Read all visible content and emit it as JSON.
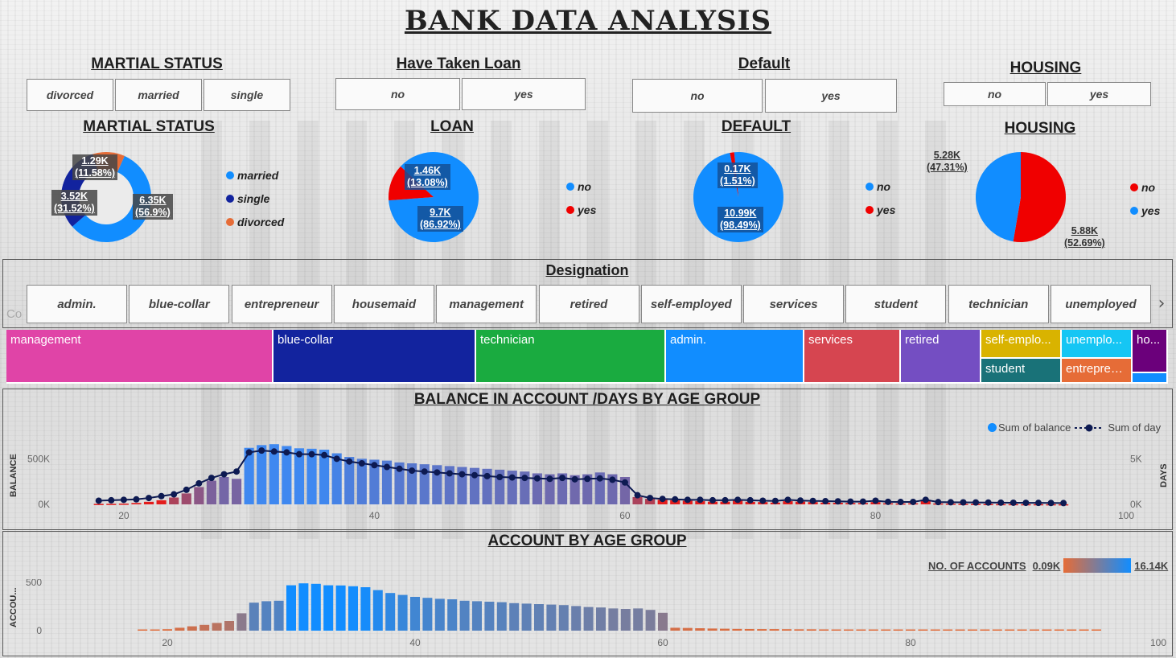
{
  "title": "BANK  DATA  ANALYSIS",
  "slicers": {
    "marital": {
      "title": "MARTIAL STATUS",
      "options": [
        "divorced",
        "married",
        "single"
      ]
    },
    "loan": {
      "title": "Have Taken Loan",
      "options": [
        "no",
        "yes"
      ]
    },
    "default": {
      "title": "Default",
      "options": [
        "no",
        "yes"
      ]
    },
    "housing": {
      "title": "HOUSING",
      "options": [
        "no",
        "yes"
      ]
    },
    "designation": {
      "title": "Designation",
      "options": [
        "admin.",
        "blue-collar",
        "entrepreneur",
        "housemaid",
        "management",
        "retired",
        "self-employed",
        "services",
        "student",
        "technician",
        "unemployed"
      ],
      "hidden_prefix": "Co"
    }
  },
  "colors": {
    "blue": "#118dff",
    "navy": "#12239e",
    "orange": "#e66c37",
    "red": "#f00000",
    "day_line": "#0d1a52"
  },
  "treemap": {
    "cells": [
      "management",
      "blue-collar",
      "technician",
      "admin.",
      "services",
      "retired",
      "self-emplo...",
      "unemplo...",
      "ho...",
      "student",
      "entrepren..."
    ]
  },
  "balance_chart": {
    "title": "BALANCE IN ACCOUNT /DAYS BY AGE GROUP",
    "legend": [
      "Sum of balance",
      "Sum of day"
    ],
    "y_left_label": "BALANCE",
    "y_right_label": "DAYS",
    "y_left_ticks": [
      "500K",
      "0K"
    ],
    "y_right_ticks": [
      "5K",
      "0K"
    ],
    "x_ticks": [
      "20",
      "40",
      "60",
      "80",
      "100"
    ]
  },
  "accounts_chart": {
    "title": "ACCOUNT BY AGE GROUP",
    "legend_title": "NO. OF ACCOUNTS",
    "legend_min": "0.09K",
    "legend_max": "16.14K",
    "y_label": "ACCOU...",
    "y_ticks": [
      "500",
      "0"
    ],
    "x_ticks": [
      "20",
      "40",
      "60",
      "80",
      "100"
    ]
  },
  "chart_data": [
    {
      "type": "pie",
      "title": "MARTIAL STATUS",
      "donut": true,
      "slices": [
        {
          "name": "married",
          "value": 6.35,
          "value_label": "6.35K",
          "pct_label": "(56.9%)",
          "color": "#118dff"
        },
        {
          "name": "single",
          "value": 3.52,
          "value_label": "3.52K",
          "pct_label": "(31.52%)",
          "color": "#12239e"
        },
        {
          "name": "divorced",
          "value": 1.29,
          "value_label": "1.29K",
          "pct_label": "(11.58%)",
          "color": "#e66c37"
        }
      ],
      "legend": [
        "married",
        "single",
        "divorced"
      ]
    },
    {
      "type": "pie",
      "title": "LOAN",
      "slices": [
        {
          "name": "no",
          "value": 9.7,
          "value_label": "9.7K",
          "pct_label": "(86.92%)",
          "color": "#118dff"
        },
        {
          "name": "yes",
          "value": 1.46,
          "value_label": "1.46K",
          "pct_label": "(13.08%)",
          "color": "#f00000"
        }
      ],
      "legend": [
        "no",
        "yes"
      ]
    },
    {
      "type": "pie",
      "title": "DEFAULT",
      "slices": [
        {
          "name": "no",
          "value": 10.99,
          "value_label": "10.99K",
          "pct_label": "(98.49%)",
          "color": "#118dff"
        },
        {
          "name": "yes",
          "value": 0.17,
          "value_label": "0.17K",
          "pct_label": "(1.51%)",
          "color": "#f00000"
        }
      ],
      "legend": [
        "no",
        "yes"
      ]
    },
    {
      "type": "pie",
      "title": "HOUSING",
      "slices": [
        {
          "name": "no",
          "value": 5.88,
          "value_label": "5.88K",
          "pct_label": "(52.69%)",
          "color": "#f00000"
        },
        {
          "name": "yes",
          "value": 5.28,
          "value_label": "5.28K",
          "pct_label": "(47.31%)",
          "color": "#118dff"
        }
      ],
      "legend": [
        "no",
        "yes"
      ]
    },
    {
      "type": "treemap",
      "title": "",
      "items": [
        {
          "name": "management",
          "value": 2566,
          "color": "#e044a7"
        },
        {
          "name": "blue-collar",
          "value": 1944,
          "color": "#12239e"
        },
        {
          "name": "technician",
          "value": 1823,
          "color": "#1aab40"
        },
        {
          "name": "admin.",
          "value": 1334,
          "color": "#118dff"
        },
        {
          "name": "services",
          "value": 923,
          "color": "#d64550"
        },
        {
          "name": "retired",
          "value": 778,
          "color": "#744ec2"
        },
        {
          "name": "self-employed",
          "value": 405,
          "color": "#d9b300"
        },
        {
          "name": "student",
          "value": 360,
          "color": "#197278"
        },
        {
          "name": "unemployed",
          "value": 357,
          "color": "#15c6f4"
        },
        {
          "name": "entrepreneur",
          "value": 328,
          "color": "#e66c37"
        },
        {
          "name": "housemaid",
          "value": 274,
          "color": "#6b007b"
        }
      ]
    },
    {
      "type": "bar+line",
      "title": "BALANCE IN ACCOUNT /DAYS BY AGE GROUP",
      "xlim": [
        15,
        100
      ],
      "ylim_balance": [
        0,
        750000
      ],
      "ylim_day": [
        0,
        7500
      ],
      "x": [
        18,
        19,
        20,
        21,
        22,
        23,
        24,
        25,
        26,
        27,
        28,
        29,
        30,
        31,
        32,
        33,
        34,
        35,
        36,
        37,
        38,
        39,
        40,
        41,
        42,
        43,
        44,
        45,
        46,
        47,
        48,
        49,
        50,
        51,
        52,
        53,
        54,
        55,
        56,
        57,
        58,
        59,
        60,
        61,
        62,
        63,
        64,
        65,
        66,
        67,
        68,
        69,
        70,
        71,
        72,
        73,
        74,
        75,
        76,
        77,
        78,
        79,
        80,
        81,
        82,
        83,
        84,
        85,
        86,
        87,
        88,
        89,
        90,
        91,
        92,
        93,
        94,
        95
      ],
      "series": [
        {
          "name": "Sum of balance",
          "values": [
            5000,
            6000,
            8000,
            15000,
            28000,
            45000,
            75000,
            120000,
            190000,
            260000,
            300000,
            280000,
            620000,
            650000,
            660000,
            640000,
            615000,
            610000,
            600000,
            560000,
            520000,
            500000,
            490000,
            480000,
            460000,
            450000,
            440000,
            430000,
            420000,
            410000,
            400000,
            390000,
            380000,
            370000,
            360000,
            340000,
            330000,
            340000,
            320000,
            330000,
            350000,
            330000,
            300000,
            80000,
            60000,
            50000,
            45000,
            40000,
            35000,
            30000,
            30000,
            40000,
            28000,
            25000,
            20000,
            35000,
            30000,
            25000,
            20000,
            18000,
            15000,
            15000,
            25000,
            12000,
            10000,
            12000,
            50000,
            10000,
            8000,
            6000,
            5000,
            4000,
            3000,
            3000,
            2000,
            2000,
            1500,
            1000
          ]
        },
        {
          "name": "Sum of day",
          "values": [
            400,
            450,
            500,
            550,
            700,
            900,
            1100,
            1600,
            2300,
            2900,
            3300,
            3600,
            5700,
            5900,
            5800,
            5700,
            5500,
            5500,
            5400,
            5000,
            4700,
            4500,
            4300,
            4100,
            3900,
            3700,
            3600,
            3500,
            3400,
            3300,
            3200,
            3100,
            3000,
            2950,
            2900,
            2850,
            2800,
            2900,
            2750,
            2800,
            2850,
            2700,
            2400,
            1000,
            700,
            600,
            550,
            500,
            500,
            450,
            450,
            500,
            450,
            400,
            380,
            500,
            420,
            380,
            350,
            330,
            300,
            300,
            400,
            280,
            260,
            270,
            500,
            250,
            230,
            220,
            210,
            200,
            190,
            180,
            170,
            160,
            150,
            140
          ]
        }
      ]
    },
    {
      "type": "bar",
      "title": "ACCOUNT BY AGE GROUP",
      "xlim": [
        15,
        100
      ],
      "ylim": [
        0,
        700
      ],
      "x": [
        18,
        19,
        20,
        21,
        22,
        23,
        24,
        25,
        26,
        27,
        28,
        29,
        30,
        31,
        32,
        33,
        34,
        35,
        36,
        37,
        38,
        39,
        40,
        41,
        42,
        43,
        44,
        45,
        46,
        47,
        48,
        49,
        50,
        51,
        52,
        53,
        54,
        55,
        56,
        57,
        58,
        59,
        60,
        61,
        62,
        63,
        64,
        65,
        66,
        67,
        68,
        69,
        70,
        71,
        72,
        73,
        74,
        75,
        76,
        77,
        78,
        79,
        80,
        81,
        82,
        83,
        84,
        85,
        86,
        87,
        88,
        89,
        90,
        91,
        92,
        93,
        94,
        95
      ],
      "series": [
        {
          "name": "",
          "values": [
            8,
            10,
            15,
            30,
            45,
            60,
            80,
            100,
            180,
            290,
            305,
            310,
            470,
            490,
            485,
            470,
            468,
            460,
            450,
            420,
            390,
            370,
            350,
            340,
            330,
            325,
            310,
            305,
            300,
            295,
            285,
            280,
            275,
            270,
            265,
            255,
            245,
            240,
            230,
            225,
            230,
            215,
            185,
            30,
            28,
            25,
            22,
            20,
            18,
            17,
            16,
            16,
            15,
            14,
            14,
            13,
            12,
            12,
            11,
            10,
            10,
            12,
            12,
            9,
            8,
            8,
            12,
            7,
            6,
            5,
            5,
            4,
            4,
            3,
            3,
            2,
            2,
            2
          ]
        }
      ]
    }
  ]
}
